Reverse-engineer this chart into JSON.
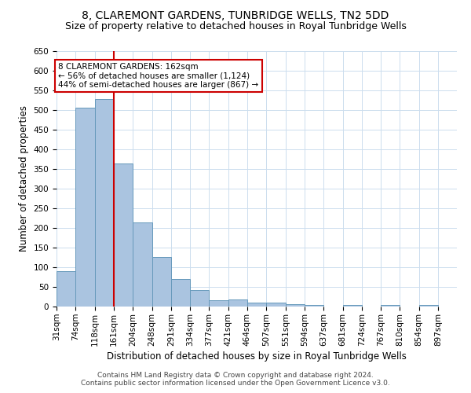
{
  "title": "8, CLAREMONT GARDENS, TUNBRIDGE WELLS, TN2 5DD",
  "subtitle": "Size of property relative to detached houses in Royal Tunbridge Wells",
  "xlabel": "Distribution of detached houses by size in Royal Tunbridge Wells",
  "ylabel": "Number of detached properties",
  "bar_edges": [
    31,
    74,
    118,
    161,
    204,
    248,
    291,
    334,
    377,
    421,
    464,
    507,
    551,
    594,
    637,
    681,
    724,
    767,
    810,
    854,
    897
  ],
  "bar_heights": [
    90,
    506,
    528,
    365,
    215,
    126,
    70,
    43,
    16,
    19,
    11,
    10,
    6,
    5,
    0,
    5,
    0,
    4,
    0,
    5
  ],
  "bar_color": "#aac4e0",
  "bar_edge_color": "#6699bb",
  "reference_line_x": 162,
  "reference_line_color": "#cc0000",
  "annotation_line1": "8 CLAREMONT GARDENS: 162sqm",
  "annotation_line2": "← 56% of detached houses are smaller (1,124)",
  "annotation_line3": "44% of semi-detached houses are larger (867) →",
  "annotation_box_color": "#ffffff",
  "annotation_box_edge_color": "#cc0000",
  "ylim": [
    0,
    650
  ],
  "yticks": [
    0,
    50,
    100,
    150,
    200,
    250,
    300,
    350,
    400,
    450,
    500,
    550,
    600,
    650
  ],
  "footer_line1": "Contains HM Land Registry data © Crown copyright and database right 2024.",
  "footer_line2": "Contains public sector information licensed under the Open Government Licence v3.0.",
  "background_color": "#ffffff",
  "grid_color": "#ccddee",
  "title_fontsize": 10,
  "subtitle_fontsize": 9,
  "axis_label_fontsize": 8.5,
  "tick_fontsize": 7.5,
  "annotation_fontsize": 7.5,
  "footer_fontsize": 6.5
}
